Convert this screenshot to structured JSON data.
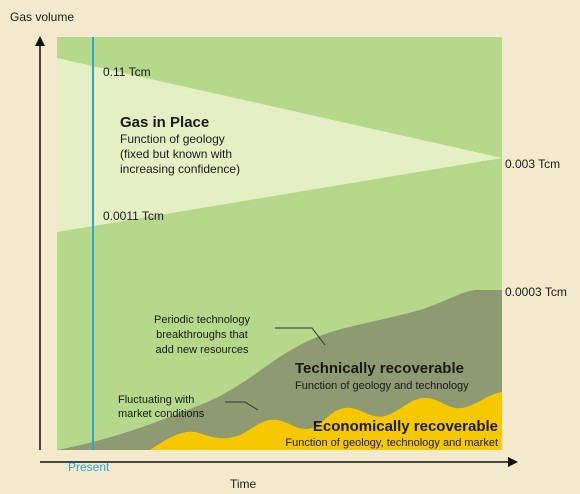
{
  "axis": {
    "y_label": "Gas volume",
    "x_label": "Time",
    "present": "Present"
  },
  "annotations": {
    "top_left": "0.11 Tcm",
    "bottom_left": "0.0011 Tcm",
    "right_apex": "0.003 Tcm",
    "right_tech": "0.0003 Tcm"
  },
  "regions": [
    {
      "title": "Gas in Place",
      "lines": [
        "Function of geology",
        "(fixed but known with",
        "increasing confidence)"
      ]
    },
    {
      "title": "Technically recoverable",
      "lines": [
        "Function of geology and technology"
      ]
    },
    {
      "title": "Economically recoverable",
      "lines": [
        "Function of geology, technology and market"
      ]
    }
  ],
  "notes": [
    {
      "lines": [
        "Periodic technology",
        "breakthroughs that",
        "add new resources"
      ]
    },
    {
      "lines": [
        "Fluctuating with",
        "market conditions"
      ]
    }
  ]
}
